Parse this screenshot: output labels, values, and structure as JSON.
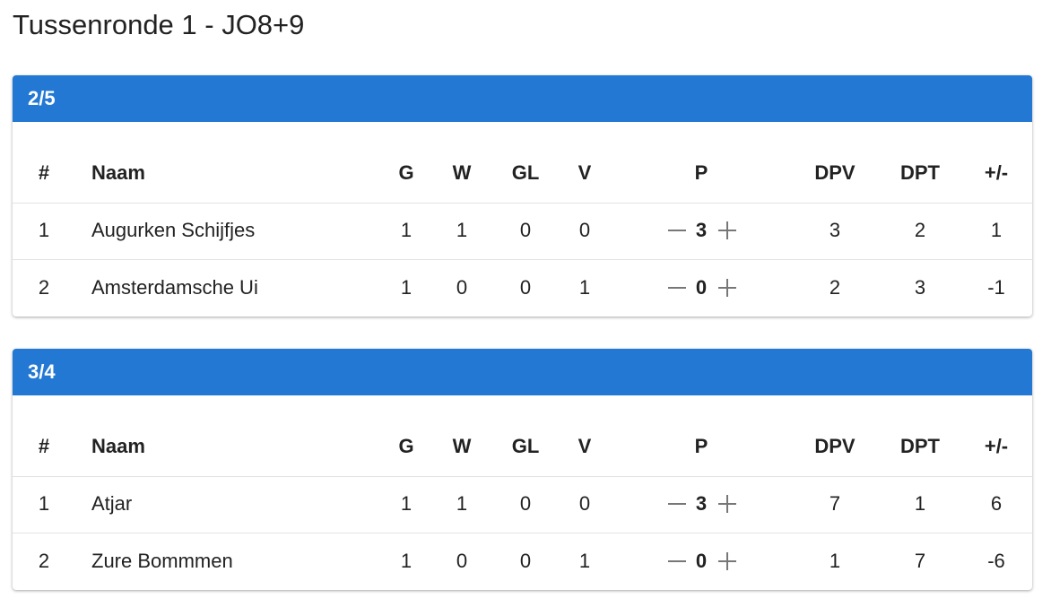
{
  "title": "Tussenronde 1 - JO8+9",
  "groups": [
    {
      "name": "2/5",
      "columns": [
        "#",
        "Naam",
        "G",
        "W",
        "GL",
        "V",
        "P",
        "DPV",
        "DPT",
        "+/-"
      ],
      "rows": [
        [
          1,
          "Augurken Schijfjes",
          1,
          1,
          0,
          0,
          3,
          3,
          2,
          1
        ],
        [
          2,
          "Amsterdamsche Ui",
          1,
          0,
          0,
          1,
          0,
          2,
          3,
          -1
        ]
      ]
    },
    {
      "name": "3/4",
      "columns": [
        "#",
        "Naam",
        "G",
        "W",
        "GL",
        "V",
        "P",
        "DPV",
        "DPT",
        "+/-"
      ],
      "rows": [
        [
          1,
          "Atjar",
          1,
          1,
          0,
          0,
          3,
          7,
          1,
          6
        ],
        [
          2,
          "Zure Bommmen",
          1,
          0,
          0,
          1,
          0,
          1,
          7,
          -6
        ]
      ]
    }
  ]
}
